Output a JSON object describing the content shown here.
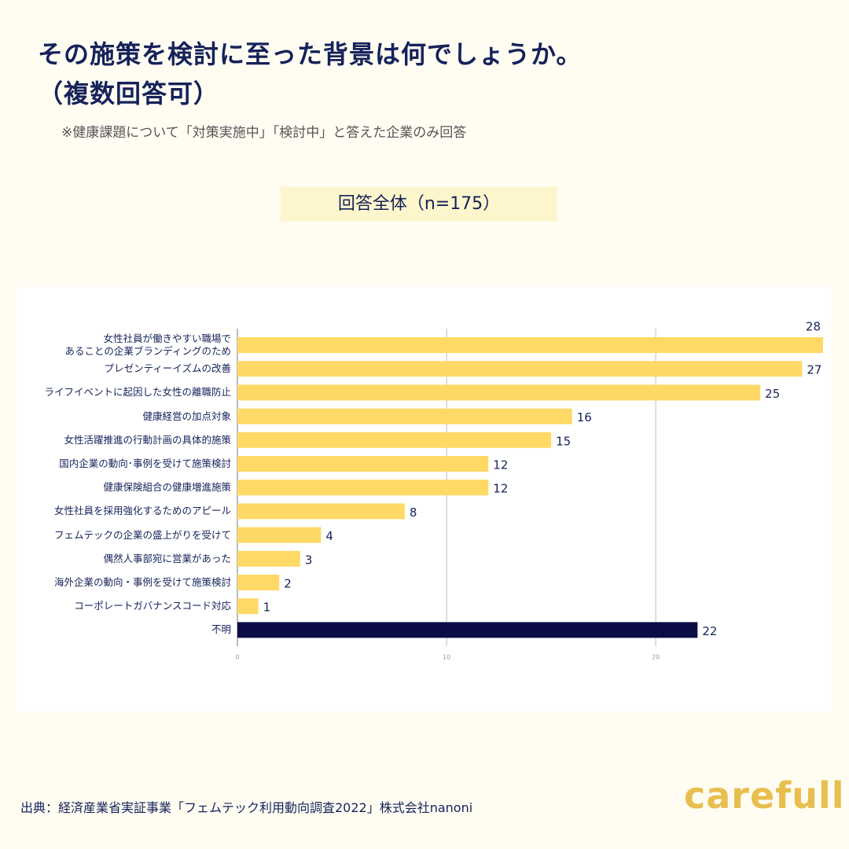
{
  "chart_data": {
    "type": "bar",
    "orientation": "horizontal",
    "title": "その施策を検討に至った背景は何でしょうか。\n（複数回答可）",
    "note": "※健康課題について「対策実施中」「検討中」と答えた企業のみ回答",
    "subtitle": "回答全体（n=175）",
    "categories": [
      "女性社員が働きやすい職場で\nあることの企業ブランディングのため",
      "プレゼンティーイズムの改善",
      "ライフイベントに起因した女性の離職防止",
      "健康経営の加点対象",
      "女性活躍推進の行動計画の具体的施策",
      "国内企業の動向･事例を受けて施策検討",
      "健康保険組合の健康増進施策",
      "女性社員を採用強化するためのアピール",
      "フェムテックの企業の盛上がりを受けて",
      "偶然人事部宛に営業があった",
      "海外企業の動向・事例を受けて施策検討",
      "コーポレートガバナンスコード対応",
      "不明"
    ],
    "values": [
      28,
      27,
      25,
      16,
      15,
      12,
      12,
      8,
      4,
      3,
      2,
      1,
      22
    ],
    "colors": [
      "#ffd966",
      "#ffd966",
      "#ffd966",
      "#ffd966",
      "#ffd966",
      "#ffd966",
      "#ffd966",
      "#ffd966",
      "#ffd966",
      "#ffd966",
      "#ffd966",
      "#ffd966",
      "#0b0b45"
    ],
    "xlim": [
      0,
      28
    ],
    "xticks": [
      0,
      10,
      20
    ],
    "grid": true,
    "source": "出典：経済産業省実証事業「フェムテック利用動向調査2022」株式会社nanoni",
    "logo": "carefull"
  }
}
